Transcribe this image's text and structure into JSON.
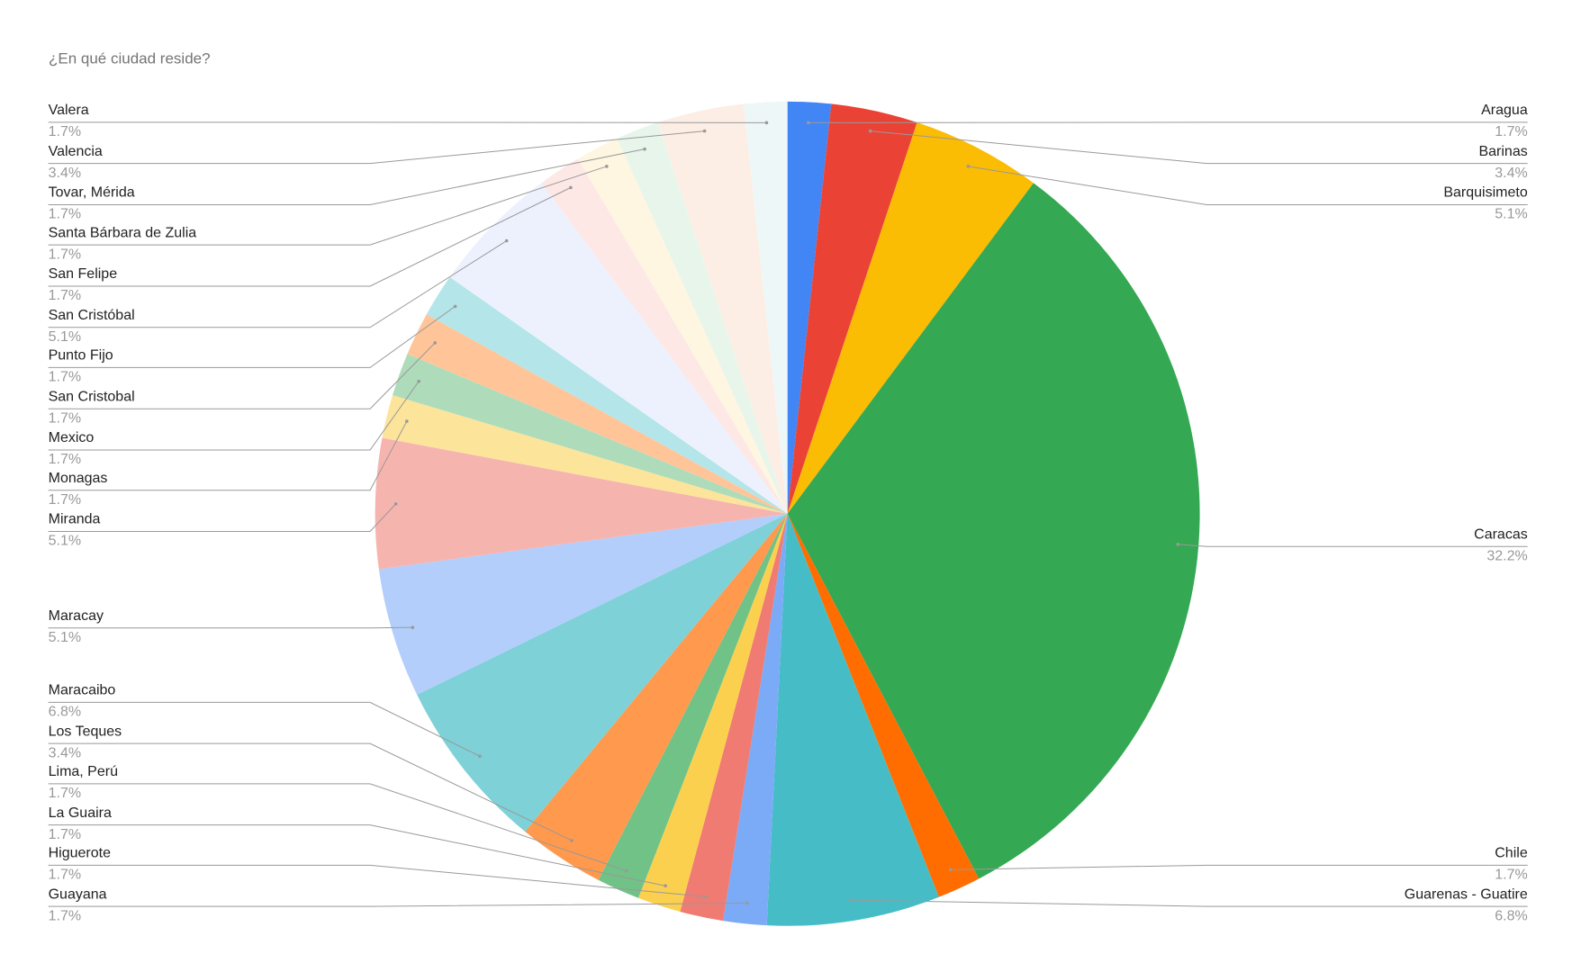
{
  "chart_data": {
    "type": "pie",
    "title": "¿En qué ciudad reside?",
    "categories": [
      "Aragua",
      "Barinas",
      "Barquisimeto",
      "Caracas",
      "Chile",
      "Guarenas - Guatire",
      "Guayana",
      "Higuerote",
      "La Guaira",
      "Lima, Perú",
      "Los Teques",
      "Maracaibo",
      "Maracay",
      "Miranda",
      "Monagas",
      "Mexico",
      "San Cristobal",
      "Punto Fijo",
      "San Cristóbal",
      "San Felipe",
      "Santa Bárbara de Zulia",
      "Tovar, Mérida",
      "Valencia",
      "Valera"
    ],
    "values": [
      1.7,
      3.4,
      5.1,
      32.2,
      1.7,
      6.8,
      1.7,
      1.7,
      1.7,
      1.7,
      3.4,
      6.8,
      5.1,
      5.1,
      1.7,
      1.7,
      1.7,
      1.7,
      5.1,
      1.7,
      1.7,
      1.7,
      3.4,
      1.7
    ],
    "value_labels": [
      "1.7%",
      "3.4%",
      "5.1%",
      "32.2%",
      "1.7%",
      "6.8%",
      "1.7%",
      "1.7%",
      "1.7%",
      "1.7%",
      "3.4%",
      "6.8%",
      "5.1%",
      "5.1%",
      "1.7%",
      "1.7%",
      "1.7%",
      "1.7%",
      "5.1%",
      "1.7%",
      "1.7%",
      "1.7%",
      "3.4%",
      "1.7%"
    ],
    "colors": [
      "#4285f4",
      "#ea4335",
      "#fbbc04",
      "#34a853",
      "#ff6d01",
      "#46bdc6",
      "#7baaf7",
      "#f07b72",
      "#fcd04f",
      "#71c287",
      "#ff994d",
      "#7ed1d7",
      "#b3cefb",
      "#f6b4ae",
      "#fde49b",
      "#aedcba",
      "#ffc599",
      "#b4e5e9",
      "#ecf1fd",
      "#fde8e6",
      "#fef6e0",
      "#e8f5eb",
      "#fdeee5",
      "#eef7f8"
    ]
  }
}
